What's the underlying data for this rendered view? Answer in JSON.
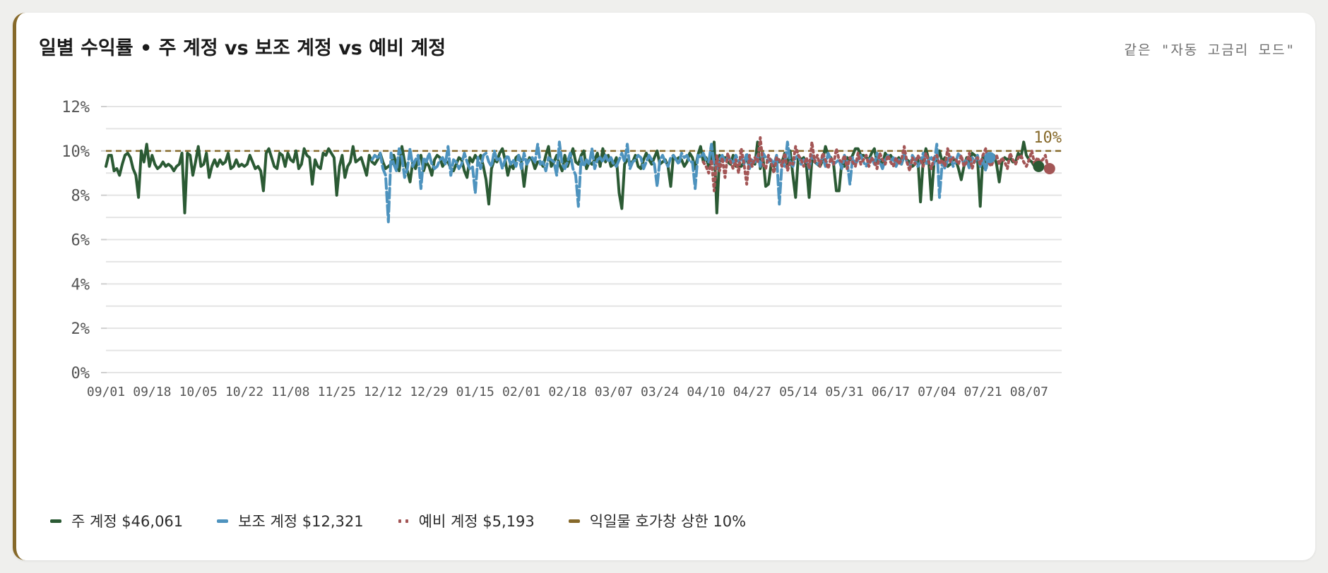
{
  "header": {
    "title": "일별 수익률 • 주 계정 vs 보조 계정 vs 예비 계정",
    "subtitle": "같은 \"자동 고금리 모드\""
  },
  "legend": {
    "items": [
      {
        "label": "주 계정 $46,061",
        "color": "#2b5a34",
        "style": "solid"
      },
      {
        "label": "보조 계정 $12,321",
        "color": "#4e93be",
        "style": "dashed"
      },
      {
        "label": "예비 계정 $5,193",
        "color": "#a35656",
        "style": "dotted"
      },
      {
        "label": "익일물 호가창 상한 10%",
        "color": "#86692a",
        "style": "solid"
      }
    ]
  },
  "colors": {
    "main": "#2b5a34",
    "sub": "#4e93be",
    "spare": "#a35656",
    "cap": "#86692a",
    "accent_border": "#86692a"
  },
  "chart_data": {
    "type": "line",
    "ylim": [
      0,
      12
    ],
    "yticks": [
      "0%",
      "2%",
      "4%",
      "6%",
      "8%",
      "10%",
      "12%"
    ],
    "xticks": [
      "09/01",
      "09/18",
      "10/05",
      "10/22",
      "11/08",
      "11/25",
      "12/12",
      "12/29",
      "01/15",
      "02/01",
      "02/18",
      "03/07",
      "03/24",
      "04/10",
      "04/27",
      "05/14",
      "05/31",
      "06/17",
      "07/04",
      "07/21",
      "08/07"
    ],
    "cap_value": 10,
    "cap_label": "10%",
    "grid": true,
    "legend_position": "bottom-left",
    "series": [
      {
        "name": "주 계정 $46,061",
        "start_day": 0,
        "values": [
          9.3,
          9.8,
          9.8,
          9.1,
          9.2,
          8.9,
          9.4,
          9.8,
          9.9,
          9.7,
          9.2,
          8.9,
          7.9,
          10,
          9.5,
          10.3,
          9.3,
          9.8,
          9.4,
          9.2,
          9.3,
          9.5,
          9.3,
          9.4,
          9.3,
          9.1,
          9.3,
          9.4,
          9.9,
          7.2,
          9.9,
          9.8,
          8.9,
          9.5,
          10.2,
          9.3,
          9.4,
          9.9,
          8.8,
          9.3,
          9.6,
          9.3,
          9.6,
          9.4,
          9.5,
          9.9,
          9.2,
          9.3,
          9.6,
          9.3,
          9.4,
          9.3,
          9.4,
          9.8,
          9.5,
          9.2,
          9.3,
          9.1,
          8.2,
          9.9,
          10.1,
          9.7,
          9.3,
          9.2,
          9.9,
          9.8,
          9.3,
          9.9,
          9.6,
          9.5,
          10,
          9.2,
          9.4,
          10.1,
          9.8,
          9.7,
          8.5,
          9.6,
          9.3,
          9.2,
          9.9,
          9.8,
          10.1,
          9.9,
          9.7,
          8,
          9.3,
          9.8,
          8.8,
          9.3,
          9.5,
          10.2,
          9.5,
          9.6,
          9.7,
          9.3,
          8.9,
          9.8,
          9.5,
          9.4,
          9.6,
          9.9,
          9.5,
          9.2,
          9.3,
          9.4,
          9.8,
          9.4,
          9.1,
          10.2,
          9.5,
          9.1,
          8.6,
          9.5,
          9.2,
          9.6,
          9.8,
          9.1,
          9.5,
          9.3,
          8.9,
          9.6,
          9.8,
          9.7,
          9.3,
          9.5,
          9.5,
          9.2,
          9.1,
          9.4,
          9.7,
          9.6,
          9.1,
          8.8,
          9.7,
          9.5,
          9.8,
          9.6,
          9.8,
          9.3,
          8.7,
          7.6,
          9.2,
          9.6,
          9.5,
          9.9,
          10.1,
          9.6,
          8.9,
          9.4,
          9.2,
          9.7,
          9.8,
          9.5,
          8.4,
          9.4,
          9.7,
          9.6,
          9.2,
          9.5,
          9.5,
          9.3,
          9.8,
          10.2,
          9.3,
          9.5,
          9.8,
          9.4,
          9.1,
          9.8,
          9.3,
          9.7,
          10.1,
          9.5,
          9.4,
          9.8,
          10,
          9.2,
          9.5,
          9.4,
          9.6,
          9.9,
          9.3,
          10.1,
          9.5,
          9.8,
          9.3,
          9.4,
          9.7,
          8.1,
          7.4,
          9.4,
          9.6,
          9.5,
          9.5,
          9.8,
          9.3,
          9.2,
          9.6,
          9.9,
          9.6,
          9.4,
          9.7,
          10,
          9.4,
          9.5,
          9.6,
          9.3,
          8.4,
          9.8,
          9.6,
          9.7,
          9.6,
          9.3,
          9.5,
          9.9,
          9.7,
          9.2,
          9.8,
          10.2,
          9.5,
          9.7,
          9.3,
          9.6,
          10.4,
          7.2,
          9.8,
          9.6,
          9.7,
          9.5,
          9.4,
          9.8,
          9.3,
          9.3,
          9.3,
          9.5,
          9.6,
          9.3,
          9.5,
          9.4,
          10.4,
          9.2,
          9.7,
          8.4,
          8.5,
          9.4,
          9.3,
          9.7,
          9.5,
          9.5,
          9.9,
          9.3,
          10,
          8.9,
          7.9,
          9.8,
          9.6,
          9.7,
          9.3,
          7.9,
          9.6,
          9.5,
          9.4,
          9.3,
          9.6,
          10.2,
          9.8,
          9.7,
          9.4,
          8.2,
          8.2,
          9.5,
          9.3,
          9.7,
          9.6,
          9.8,
          10.1,
          10.1,
          9.8,
          9.8,
          9.7,
          9.6,
          9.9,
          10.1,
          9.5,
          9.6,
          9.4,
          9.9,
          9.7,
          9.8,
          9.6,
          9.5,
          9.7,
          9.4,
          9.8,
          9.6,
          9.5,
          9.3,
          9.4,
          9.7,
          7.7,
          9.6,
          10.1,
          9.6,
          7.8,
          9.5,
          9.6,
          10,
          9.5,
          9.7,
          9.3,
          9.4,
          9.6,
          9.6,
          9.2,
          8.7,
          9.3,
          9.7,
          9.5,
          9.9,
          9.8,
          9.7,
          7.5,
          9.8,
          9.5,
          9.6,
          9.6,
          9.8,
          9.4,
          8.6,
          9.5,
          9.7,
          9.6,
          9.7,
          9.5,
          9.5,
          9.9,
          9.7,
          10.4,
          9.8,
          9.6,
          9.5,
          9.3,
          9.3
        ]
      },
      {
        "name": "보조 계정 $12,321",
        "start_day": 98,
        "values": [
          9.6,
          9.8,
          9.7,
          9.9,
          9.2,
          8.9,
          6.8,
          9.9,
          9.4,
          9.1,
          10.1,
          9.7,
          8.8,
          9.2,
          10.1,
          9.3,
          9.6,
          9.8,
          8.3,
          9.7,
          9.5,
          9.9,
          9.4,
          9.2,
          9.3,
          9.6,
          9.7,
          9.4,
          10.2,
          8.9,
          9.6,
          9.5,
          9.2,
          9.4,
          9.9,
          9.5,
          9.2,
          9.3,
          8.1,
          9.7,
          9.2,
          9.8,
          9.9,
          9.5,
          9.3,
          10,
          9.6,
          9.7,
          9.2,
          9.6,
          9.8,
          9.4,
          9.6,
          9.3,
          9.8,
          9.2,
          9.9,
          9.4,
          9.6,
          9.7,
          9.5,
          10.3,
          9.4,
          9.5,
          9.1,
          9.7,
          9.6,
          9.5,
          8.9,
          10.4,
          9.4,
          9.2,
          9.5,
          9.9,
          9.2,
          8.9,
          7.5,
          9.7,
          9.3,
          9.6,
          9.4,
          10.1,
          9.2,
          9.6,
          9.7,
          9.5,
          9.8,
          9.5,
          9.7,
          9.4,
          9.3,
          9.6,
          9.9,
          9.5,
          10.3,
          9.2,
          9.5,
          9.6,
          9.8,
          9.7,
          9.2,
          9.5,
          9.8,
          9.6,
          9.4,
          8.4,
          9.6,
          9.8,
          9.5,
          9.3,
          9.7,
          9.8,
          9.6,
          9.4,
          9.9,
          9.7,
          9.8,
          9.5,
          9.5,
          8.3,
          9.8,
          9.7,
          9.9,
          9.6,
          9.5,
          10.3,
          9.4,
          9.2,
          9.6,
          9.8,
          9.5,
          9.7,
          9.6,
          9.4,
          9.8,
          9.5,
          9.7,
          9.4,
          9.9,
          9.2,
          9.6,
          9.5,
          9.8,
          9.3,
          9.9,
          9.7,
          9.5,
          9.6,
          9.4,
          9.8,
          7.6,
          9.5,
          9.3,
          10.4,
          9.5,
          9.3,
          9.7,
          9.8,
          9.4,
          9.6,
          9.5,
          9.2,
          9.8,
          9.6,
          9.4,
          9.5,
          9.7,
          9.3,
          9.9,
          9.6,
          9.4,
          9.5,
          9.6,
          9.2,
          9.8,
          9.5,
          8.5,
          9.7,
          9.4,
          9.6,
          9.8,
          9.5,
          9.3,
          9.6,
          9.7,
          9.4,
          9.9,
          9.5,
          9.2,
          9.6,
          9.8,
          9.5,
          9.7,
          9.3,
          9.6,
          9.4,
          9.9,
          9.5,
          9.2,
          9.8,
          9.6,
          9.3,
          9.5,
          9.9,
          9.4,
          9.6,
          9.7,
          9.4,
          10.3,
          7.9,
          9.5,
          9.2,
          9.6,
          9.8,
          9.3,
          9.5,
          9.9,
          9.7,
          9.4,
          9.6,
          9.2,
          9.7,
          9.5,
          9.8,
          9.3,
          9.6,
          9.1,
          9.7
        ]
      },
      {
        "name": "예비 계정 $5,193",
        "start_day": 220,
        "values": [
          9.5,
          9.3,
          9.0,
          9.6,
          8.2,
          9.8,
          9.1,
          9.7,
          8.8,
          9.9,
          9.5,
          9.2,
          9.6,
          9.0,
          10.1,
          9.4,
          8.5,
          9.8,
          9.3,
          9.7,
          9.5,
          10.6,
          9.4,
          9.2,
          9.8,
          9.5,
          9.0,
          9.7,
          9.6,
          9.3,
          9.9,
          9.1,
          9.5,
          9.4,
          10.2,
          9.8,
          9.6,
          9.3,
          9.7,
          9.2,
          10.4,
          9.5,
          9.8,
          9.3,
          9.9,
          9.6,
          9.2,
          9.7,
          9.4,
          10.1,
          9.6,
          9.5,
          9.8,
          9.2,
          9.7,
          9.5,
          9.3,
          9.9,
          9.4,
          9.6,
          9.8,
          9.3,
          9.7,
          9.5,
          9.2,
          9.9,
          9.6,
          9.4,
          9.8,
          9.5,
          9.3,
          9.7,
          9.4,
          9.6,
          10.2,
          9.5,
          9.1,
          9.7,
          9.4,
          9.8,
          9.6,
          9.3,
          9.9,
          9.5,
          9.2,
          9.7,
          9.8,
          9.4,
          9.6,
          9.3,
          10.1,
          9.5,
          9.7,
          9.6,
          9.4,
          9.8,
          9.3,
          9.5,
          9.9,
          9.2,
          9.6,
          9.7,
          9.4,
          9.8,
          10.1,
          9.5,
          9.3,
          9.6,
          9.8,
          9.4,
          9.7,
          9.5,
          9.2,
          9.9,
          9.6,
          9.4,
          9.7,
          9.8,
          9.5,
          9.3,
          9.6,
          10,
          9.4,
          9.7,
          9.5,
          9.6,
          9.8,
          9.2
        ]
      }
    ]
  }
}
